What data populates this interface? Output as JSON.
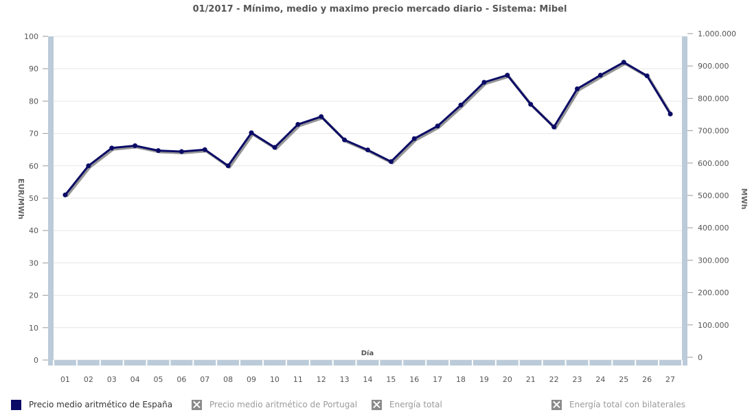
{
  "chart_data": {
    "type": "line",
    "title": "01/2017 - Mínimo, medio y maximo precio mercado diario - Sistema: Mibel",
    "xlabel": "Día",
    "ylabel": "EUR/MWh",
    "y2label": "MWh",
    "categories": [
      "01",
      "02",
      "03",
      "04",
      "05",
      "06",
      "07",
      "08",
      "09",
      "10",
      "11",
      "12",
      "13",
      "14",
      "15",
      "16",
      "17",
      "18",
      "19",
      "20",
      "21",
      "22",
      "23",
      "24",
      "25",
      "26",
      "27"
    ],
    "ylim": [
      0,
      100
    ],
    "yticks": [
      "0",
      "10",
      "20",
      "30",
      "40",
      "50",
      "60",
      "70",
      "80",
      "90",
      "100"
    ],
    "y2lim": [
      0,
      1000000
    ],
    "y2ticks": [
      "0",
      "100.000",
      "200.000",
      "300.000",
      "400.000",
      "500.000",
      "600.000",
      "700.000",
      "800.000",
      "900.000",
      "1.000.000"
    ],
    "grid": true,
    "legend_position": "bottom",
    "series": [
      {
        "name": "Precio medio aritmético de España",
        "color": "#0b0b66",
        "visible": true,
        "values": [
          51.0,
          60.0,
          65.5,
          66.2,
          64.7,
          64.4,
          65.0,
          60.0,
          70.2,
          65.7,
          72.8,
          75.2,
          68.0,
          64.9,
          61.3,
          68.4,
          72.3,
          78.8,
          85.8,
          88.0,
          79.0,
          72.0,
          83.8,
          88.0,
          92.0,
          87.8,
          76.0
        ]
      },
      {
        "name": "Precio medio aritmético de Portugal",
        "visible": false
      },
      {
        "name": "Energía total",
        "visible": false
      },
      {
        "name": "Energía total con bilaterales",
        "visible": false
      }
    ]
  }
}
